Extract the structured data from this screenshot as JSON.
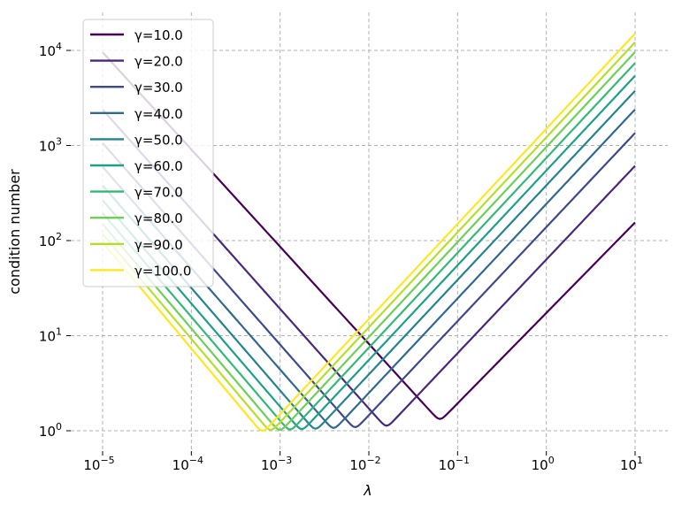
{
  "chart_data": {
    "type": "line",
    "xscale": "log",
    "yscale": "log",
    "xlabel": "λ",
    "ylabel": "condition number",
    "xlim": [
      6.3e-06,
      20
    ],
    "ylim": [
      0.8,
      20000
    ],
    "grid": true,
    "grid_style": "dashed",
    "legend_position": "top-left",
    "x_ticks": [
      {
        "value": 1e-05,
        "base": "10",
        "exp": "−5"
      },
      {
        "value": 0.0001,
        "base": "10",
        "exp": "−4"
      },
      {
        "value": 0.001,
        "base": "10",
        "exp": "−3"
      },
      {
        "value": 0.01,
        "base": "10",
        "exp": "−2"
      },
      {
        "value": 0.1,
        "base": "10",
        "exp": "−1"
      },
      {
        "value": 1,
        "base": "10",
        "exp": "0"
      },
      {
        "value": 10,
        "base": "10",
        "exp": "1"
      }
    ],
    "y_ticks": [
      {
        "value": 1,
        "base": "10",
        "exp": "0"
      },
      {
        "value": 10,
        "base": "10",
        "exp": "1"
      },
      {
        "value": 100,
        "base": "10",
        "exp": "2"
      },
      {
        "value": 1000,
        "base": "10",
        "exp": "3"
      },
      {
        "value": 10000,
        "base": "10",
        "exp": "4"
      }
    ],
    "series": [
      {
        "name": "γ=10.0",
        "color": "#440154",
        "min_lambda": 0.063,
        "points": [
          [
            1e-05,
            10160
          ],
          [
            0.063,
            1.33
          ],
          [
            10,
            165
          ]
        ]
      },
      {
        "name": "γ=20.0",
        "color": "#482878",
        "min_lambda": 0.0158,
        "points": [
          [
            1e-05,
            2540
          ],
          [
            0.0158,
            1.13
          ],
          [
            10,
            650
          ]
        ]
      },
      {
        "name": "γ=30.0",
        "color": "#3e4989",
        "min_lambda": 0.007,
        "points": [
          [
            1e-05,
            1130
          ],
          [
            0.007,
            1.09
          ],
          [
            10,
            1440
          ]
        ]
      },
      {
        "name": "γ=40.0",
        "color": "#31688e",
        "min_lambda": 0.004,
        "points": [
          [
            1e-05,
            635
          ],
          [
            0.004,
            1.07
          ],
          [
            10,
            2550
          ]
        ]
      },
      {
        "name": "γ=50.0",
        "color": "#26828e",
        "min_lambda": 0.0025,
        "points": [
          [
            1e-05,
            405
          ],
          [
            0.0025,
            1.05
          ],
          [
            10,
            4000
          ]
        ]
      },
      {
        "name": "γ=60.0",
        "color": "#1f9e89",
        "min_lambda": 0.00175,
        "points": [
          [
            1e-05,
            282
          ],
          [
            0.00175,
            1.04
          ],
          [
            10,
            5760
          ]
        ]
      },
      {
        "name": "γ=70.0",
        "color": "#35b779",
        "min_lambda": 0.00129,
        "points": [
          [
            1e-05,
            207
          ],
          [
            0.00129,
            1.03
          ],
          [
            10,
            7840
          ]
        ]
      },
      {
        "name": "γ=80.0",
        "color": "#6ece58",
        "min_lambda": 0.00099,
        "points": [
          [
            1e-05,
            159
          ],
          [
            0.00099,
            1.02
          ],
          [
            10,
            10240
          ]
        ]
      },
      {
        "name": "γ=90.0",
        "color": "#b5de2b",
        "min_lambda": 0.00078,
        "points": [
          [
            1e-05,
            125
          ],
          [
            0.00078,
            1.02
          ],
          [
            10,
            12960
          ]
        ]
      },
      {
        "name": "γ=100.0",
        "color": "#fde725",
        "min_lambda": 0.00063,
        "points": [
          [
            1e-05,
            102
          ],
          [
            0.00063,
            1.0
          ],
          [
            10,
            16000
          ]
        ]
      }
    ]
  }
}
